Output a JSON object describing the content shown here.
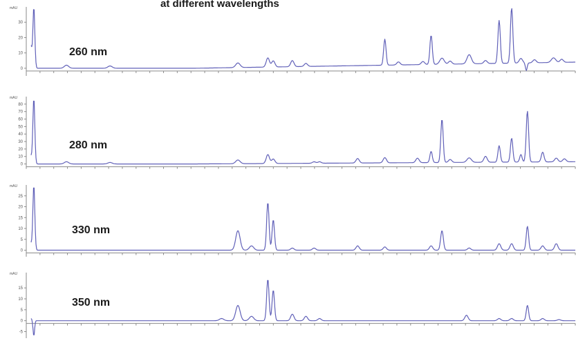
{
  "chart_data": {
    "type": "line",
    "title": "at different wavelengths",
    "xlabel": "",
    "ylabel": "mAU",
    "panels": [
      {
        "name": "260 nm",
        "unit": "mAU",
        "ylim": [
          -5,
          40
        ],
        "yticks": [
          "0",
          "10",
          "20",
          "30"
        ],
        "baseline_end": 4,
        "peaks": [
          {
            "x": 0.0,
            "y": 14,
            "w": 0.0014
          },
          {
            "x": 0.005,
            "y": 40,
            "w": 0.0018
          },
          {
            "x": 0.065,
            "y": 2,
            "w": 0.004
          },
          {
            "x": 0.145,
            "y": 1.5,
            "w": 0.004
          },
          {
            "x": 0.38,
            "y": 3,
            "w": 0.004
          },
          {
            "x": 0.435,
            "y": 6,
            "w": 0.003
          },
          {
            "x": 0.445,
            "y": 4,
            "w": 0.003
          },
          {
            "x": 0.48,
            "y": 4,
            "w": 0.003
          },
          {
            "x": 0.505,
            "y": 2,
            "w": 0.003
          },
          {
            "x": 0.65,
            "y": 17,
            "w": 0.0022
          },
          {
            "x": 0.675,
            "y": 2,
            "w": 0.003
          },
          {
            "x": 0.72,
            "y": 2,
            "w": 0.003
          },
          {
            "x": 0.735,
            "y": 19,
            "w": 0.0022
          },
          {
            "x": 0.755,
            "y": 4,
            "w": 0.004
          },
          {
            "x": 0.77,
            "y": 2,
            "w": 0.003
          },
          {
            "x": 0.805,
            "y": 6,
            "w": 0.004
          },
          {
            "x": 0.835,
            "y": 2,
            "w": 0.003
          },
          {
            "x": 0.86,
            "y": 28,
            "w": 0.0022
          },
          {
            "x": 0.883,
            "y": 36,
            "w": 0.0022
          },
          {
            "x": 0.9,
            "y": 3,
            "w": 0.003
          },
          {
            "x": 0.91,
            "y": -5,
            "w": 0.0016
          },
          {
            "x": 0.925,
            "y": 2,
            "w": 0.003
          },
          {
            "x": 0.96,
            "y": 3,
            "w": 0.004
          },
          {
            "x": 0.975,
            "y": 2,
            "w": 0.003
          }
        ]
      },
      {
        "name": "280 nm",
        "unit": "mAU",
        "ylim": [
          -5,
          90
        ],
        "yticks": [
          "0",
          "10",
          "20",
          "30",
          "40",
          "50",
          "60",
          "70",
          "80"
        ],
        "baseline_end": 3,
        "peaks": [
          {
            "x": 0.0,
            "y": 10,
            "w": 0.0014
          },
          {
            "x": 0.005,
            "y": 88,
            "w": 0.0018
          },
          {
            "x": 0.065,
            "y": 3,
            "w": 0.004
          },
          {
            "x": 0.145,
            "y": 2,
            "w": 0.004
          },
          {
            "x": 0.38,
            "y": 5,
            "w": 0.004
          },
          {
            "x": 0.435,
            "y": 12,
            "w": 0.003
          },
          {
            "x": 0.445,
            "y": 6,
            "w": 0.003
          },
          {
            "x": 0.52,
            "y": 2,
            "w": 0.003
          },
          {
            "x": 0.53,
            "y": 2,
            "w": 0.003
          },
          {
            "x": 0.6,
            "y": 6,
            "w": 0.003
          },
          {
            "x": 0.65,
            "y": 7,
            "w": 0.003
          },
          {
            "x": 0.71,
            "y": 6,
            "w": 0.003
          },
          {
            "x": 0.735,
            "y": 15,
            "w": 0.0022
          },
          {
            "x": 0.755,
            "y": 58,
            "w": 0.0022
          },
          {
            "x": 0.77,
            "y": 4,
            "w": 0.003
          },
          {
            "x": 0.805,
            "y": 6,
            "w": 0.004
          },
          {
            "x": 0.835,
            "y": 8,
            "w": 0.003
          },
          {
            "x": 0.86,
            "y": 22,
            "w": 0.0022
          },
          {
            "x": 0.883,
            "y": 32,
            "w": 0.0022
          },
          {
            "x": 0.9,
            "y": 10,
            "w": 0.0022
          },
          {
            "x": 0.912,
            "y": 68,
            "w": 0.0022
          },
          {
            "x": 0.94,
            "y": 13,
            "w": 0.0025
          },
          {
            "x": 0.965,
            "y": 5,
            "w": 0.003
          },
          {
            "x": 0.98,
            "y": 4,
            "w": 0.003
          }
        ]
      },
      {
        "name": "330 nm",
        "unit": "mAU",
        "ylim": [
          -3,
          30
        ],
        "yticks": [
          "0",
          "5",
          "10",
          "15",
          "20",
          "25"
        ],
        "baseline_end": 0,
        "peaks": [
          {
            "x": 0.0,
            "y": 3,
            "w": 0.0014
          },
          {
            "x": 0.005,
            "y": 30,
            "w": 0.0018
          },
          {
            "x": 0.38,
            "y": 9,
            "w": 0.004
          },
          {
            "x": 0.405,
            "y": 2,
            "w": 0.004
          },
          {
            "x": 0.435,
            "y": 22,
            "w": 0.0022
          },
          {
            "x": 0.445,
            "y": 14,
            "w": 0.0022
          },
          {
            "x": 0.48,
            "y": 1,
            "w": 0.003
          },
          {
            "x": 0.52,
            "y": 1,
            "w": 0.003
          },
          {
            "x": 0.6,
            "y": 2,
            "w": 0.003
          },
          {
            "x": 0.65,
            "y": 1.5,
            "w": 0.003
          },
          {
            "x": 0.735,
            "y": 2,
            "w": 0.003
          },
          {
            "x": 0.755,
            "y": 9,
            "w": 0.0025
          },
          {
            "x": 0.805,
            "y": 1,
            "w": 0.003
          },
          {
            "x": 0.86,
            "y": 3,
            "w": 0.003
          },
          {
            "x": 0.883,
            "y": 3,
            "w": 0.003
          },
          {
            "x": 0.912,
            "y": 11,
            "w": 0.0022
          },
          {
            "x": 0.94,
            "y": 2,
            "w": 0.003
          },
          {
            "x": 0.965,
            "y": 3,
            "w": 0.003
          }
        ]
      },
      {
        "name": "350 nm",
        "unit": "mAU",
        "ylim": [
          -8,
          22
        ],
        "yticks": [
          "-5",
          "0",
          "5",
          "10",
          "15"
        ],
        "baseline_end": 0,
        "peaks": [
          {
            "x": 0.0,
            "y": 1,
            "w": 0.0014
          },
          {
            "x": 0.005,
            "y": -7,
            "w": 0.0014
          },
          {
            "x": 0.35,
            "y": 1,
            "w": 0.004
          },
          {
            "x": 0.38,
            "y": 7,
            "w": 0.004
          },
          {
            "x": 0.405,
            "y": 2,
            "w": 0.004
          },
          {
            "x": 0.435,
            "y": 19,
            "w": 0.0022
          },
          {
            "x": 0.445,
            "y": 14,
            "w": 0.0022
          },
          {
            "x": 0.48,
            "y": 3,
            "w": 0.003
          },
          {
            "x": 0.505,
            "y": 2,
            "w": 0.003
          },
          {
            "x": 0.53,
            "y": 1,
            "w": 0.003
          },
          {
            "x": 0.8,
            "y": 2.5,
            "w": 0.003
          },
          {
            "x": 0.86,
            "y": 1,
            "w": 0.003
          },
          {
            "x": 0.883,
            "y": 1,
            "w": 0.003
          },
          {
            "x": 0.912,
            "y": 7,
            "w": 0.0022
          },
          {
            "x": 0.94,
            "y": 1,
            "w": 0.003
          },
          {
            "x": 0.97,
            "y": 0.5,
            "w": 0.003
          }
        ]
      }
    ]
  }
}
